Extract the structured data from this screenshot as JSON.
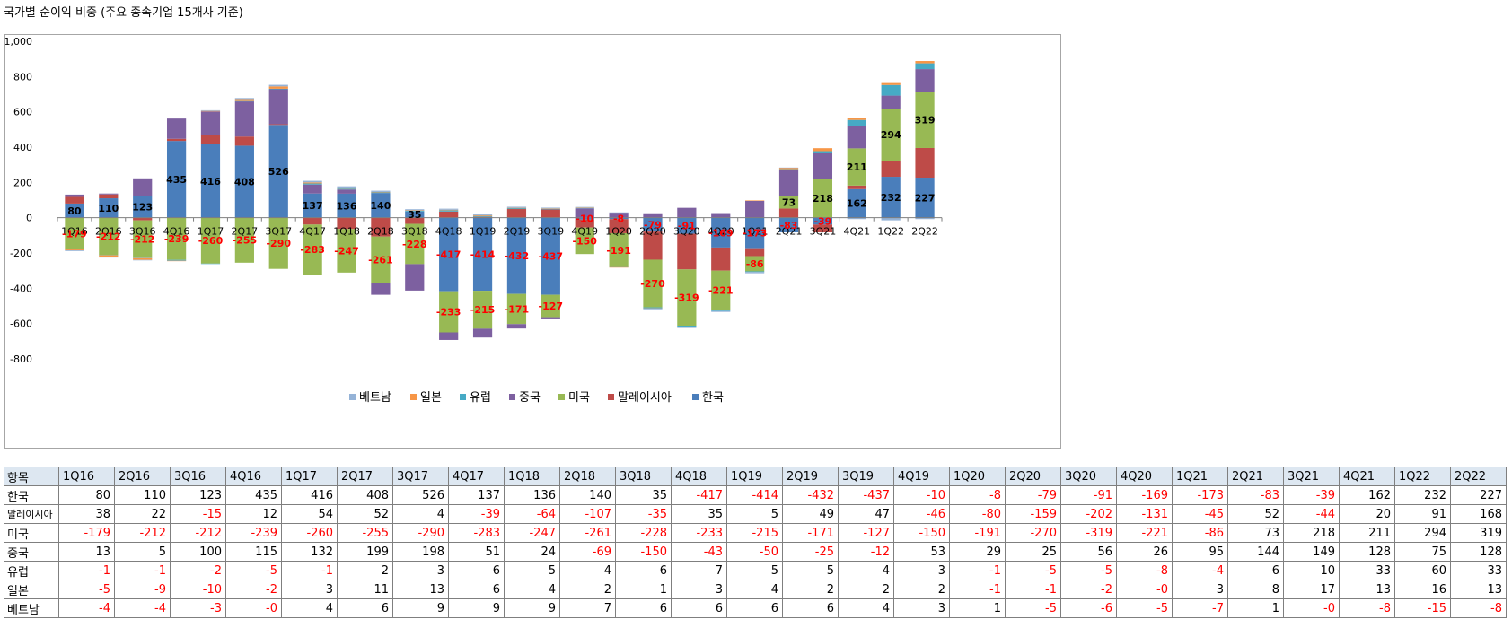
{
  "title": "국가별 순이익 비중 (주요 종속기업 15개사 기준)",
  "chart_data": {
    "type": "bar",
    "stacked": true,
    "categories": [
      "1Q16",
      "2Q16",
      "3Q16",
      "4Q16",
      "1Q17",
      "2Q17",
      "3Q17",
      "4Q17",
      "1Q18",
      "2Q18",
      "3Q18",
      "4Q18",
      "1Q19",
      "2Q19",
      "3Q19",
      "4Q19",
      "1Q20",
      "2Q20",
      "3Q20",
      "4Q20",
      "1Q21",
      "2Q21",
      "3Q21",
      "4Q21",
      "1Q22",
      "2Q22"
    ],
    "ylim": [
      -800,
      1000
    ],
    "yticks": [
      "1,000",
      "800",
      "600",
      "400",
      "200",
      "0",
      "-200",
      "-400",
      "-600",
      "-800"
    ],
    "ytick_values": [
      1000,
      800,
      600,
      400,
      200,
      0,
      -200,
      -400,
      -600,
      -800
    ],
    "legend_position": "bottom",
    "series": [
      {
        "name": "한국",
        "color": "#4a7ebb",
        "values": [
          80,
          110,
          123,
          435,
          416,
          408,
          526,
          137,
          136,
          140,
          35,
          -417,
          -414,
          -432,
          -437,
          -10,
          -8,
          -79,
          -91,
          -169,
          -173,
          -83,
          -39,
          162,
          232,
          227
        ]
      },
      {
        "name": "말레이시아",
        "color": "#be4b48",
        "values": [
          38,
          22,
          -15,
          12,
          54,
          52,
          4,
          -39,
          -64,
          -107,
          -35,
          35,
          5,
          49,
          47,
          -46,
          -80,
          -159,
          -202,
          -131,
          -45,
          52,
          -44,
          20,
          91,
          168
        ]
      },
      {
        "name": "미국",
        "color": "#98b954",
        "values": [
          -179,
          -212,
          -212,
          -239,
          -260,
          -255,
          -290,
          -283,
          -247,
          -261,
          -228,
          -233,
          -215,
          -171,
          -127,
          -150,
          -191,
          -270,
          -319,
          -221,
          -86,
          73,
          218,
          211,
          294,
          319
        ]
      },
      {
        "name": "중국",
        "color": "#7d60a0",
        "values": [
          13,
          5,
          100,
          115,
          132,
          199,
          198,
          51,
          24,
          -69,
          -150,
          -43,
          -50,
          -25,
          -12,
          53,
          29,
          25,
          56,
          26,
          95,
          144,
          149,
          128,
          75,
          128
        ]
      },
      {
        "name": "유럽",
        "color": "#46aac5",
        "values": [
          -1,
          -1,
          -2,
          -5,
          -1,
          2,
          3,
          6,
          5,
          4,
          6,
          7,
          5,
          5,
          4,
          3,
          -1,
          -5,
          -5,
          -8,
          -4,
          6,
          10,
          33,
          60,
          33
        ]
      },
      {
        "name": "일본",
        "color": "#f79646",
        "values": [
          -5,
          -9,
          -10,
          -2,
          3,
          11,
          13,
          6,
          4,
          2,
          1,
          3,
          4,
          2,
          2,
          2,
          -1,
          -1,
          -2,
          0,
          3,
          8,
          17,
          13,
          16,
          13
        ]
      },
      {
        "name": "베트남",
        "color": "#95b3d7",
        "values": [
          -4,
          -4,
          -3,
          0,
          4,
          6,
          9,
          9,
          9,
          7,
          6,
          6,
          6,
          6,
          4,
          3,
          1,
          -5,
          -6,
          -5,
          -7,
          1,
          0,
          -8,
          -15,
          -8
        ]
      }
    ],
    "legend_order": [
      "베트남",
      "일본",
      "유럽",
      "중국",
      "미국",
      "말레이시아",
      "한국"
    ],
    "data_label_series": [
      "한국",
      "미국"
    ]
  },
  "table": {
    "header_label": "항목",
    "rows": [
      {
        "label": "한국",
        "values": [
          "80",
          "110",
          "123",
          "435",
          "416",
          "408",
          "526",
          "137",
          "136",
          "140",
          "35",
          "-417",
          "-414",
          "-432",
          "-437",
          "-10",
          "-8",
          "-79",
          "-91",
          "-169",
          "-173",
          "-83",
          "-39",
          "162",
          "232",
          "227"
        ]
      },
      {
        "label": "말레이시아",
        "values": [
          "38",
          "22",
          "-15",
          "12",
          "54",
          "52",
          "4",
          "-39",
          "-64",
          "-107",
          "-35",
          "35",
          "5",
          "49",
          "47",
          "-46",
          "-80",
          "-159",
          "-202",
          "-131",
          "-45",
          "52",
          "-44",
          "20",
          "91",
          "168"
        ]
      },
      {
        "label": "미국",
        "values": [
          "-179",
          "-212",
          "-212",
          "-239",
          "-260",
          "-255",
          "-290",
          "-283",
          "-247",
          "-261",
          "-228",
          "-233",
          "-215",
          "-171",
          "-127",
          "-150",
          "-191",
          "-270",
          "-319",
          "-221",
          "-86",
          "73",
          "218",
          "211",
          "294",
          "319"
        ]
      },
      {
        "label": "중국",
        "values": [
          "13",
          "5",
          "100",
          "115",
          "132",
          "199",
          "198",
          "51",
          "24",
          "-69",
          "-150",
          "-43",
          "-50",
          "-25",
          "-12",
          "53",
          "29",
          "25",
          "56",
          "26",
          "95",
          "144",
          "149",
          "128",
          "75",
          "128"
        ]
      },
      {
        "label": "유럽",
        "values": [
          "-1",
          "-1",
          "-2",
          "-5",
          "-1",
          "2",
          "3",
          "6",
          "5",
          "4",
          "6",
          "7",
          "5",
          "5",
          "4",
          "3",
          "-1",
          "-5",
          "-5",
          "-8",
          "-4",
          "6",
          "10",
          "33",
          "60",
          "33"
        ]
      },
      {
        "label": "일본",
        "values": [
          "-5",
          "-9",
          "-10",
          "-2",
          "3",
          "11",
          "13",
          "6",
          "4",
          "2",
          "1",
          "3",
          "4",
          "2",
          "2",
          "2",
          "-1",
          "-1",
          "-2",
          "-0",
          "3",
          "8",
          "17",
          "13",
          "16",
          "13"
        ]
      },
      {
        "label": "베트남",
        "values": [
          "-4",
          "-4",
          "-3",
          "-0",
          "4",
          "6",
          "9",
          "9",
          "9",
          "7",
          "6",
          "6",
          "6",
          "6",
          "4",
          "3",
          "1",
          "-5",
          "-6",
          "-5",
          "-7",
          "1",
          "-0",
          "-8",
          "-15",
          "-8"
        ]
      }
    ]
  }
}
